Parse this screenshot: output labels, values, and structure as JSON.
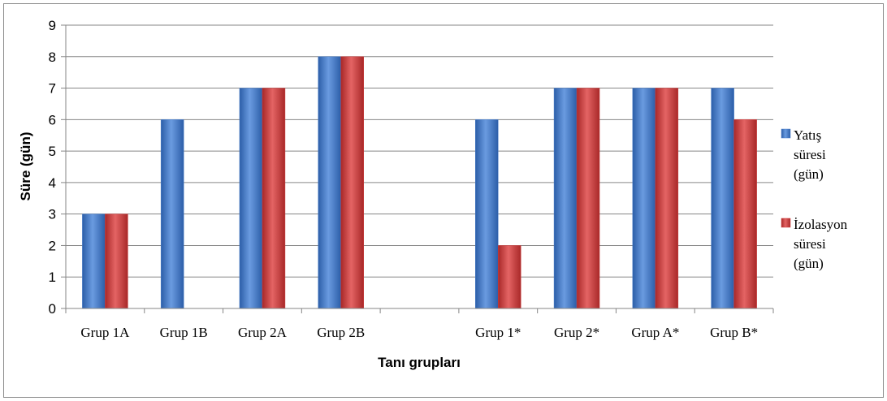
{
  "chart_data": {
    "type": "bar",
    "title": "",
    "xlabel": "Tanı grupları",
    "ylabel": "Süre (gün)",
    "ylim": [
      0,
      9
    ],
    "yticks": [
      0,
      1,
      2,
      3,
      4,
      5,
      6,
      7,
      8,
      9
    ],
    "grid": true,
    "legend_position": "right",
    "categories": [
      "Grup 1A",
      "Grup 1B",
      "Grup 2A",
      "Grup 2B",
      "",
      "Grup 1*",
      "Grup 2*",
      "Grup A*",
      "Grup B*"
    ],
    "series": [
      {
        "name": "Yatış süresi (gün)",
        "legend_lines": [
          "Yatış",
          "süresi",
          "(gün)"
        ],
        "color": "#4a7ec9",
        "values": [
          3,
          6,
          7,
          8,
          null,
          6,
          7,
          7,
          7
        ]
      },
      {
        "name": "İzolasyon süresi (gün)",
        "legend_lines": [
          "İzolasyon",
          "süresi",
          "(gün)"
        ],
        "color": "#cf3f3f",
        "values": [
          3,
          null,
          7,
          8,
          null,
          2,
          7,
          7,
          6
        ]
      }
    ]
  }
}
